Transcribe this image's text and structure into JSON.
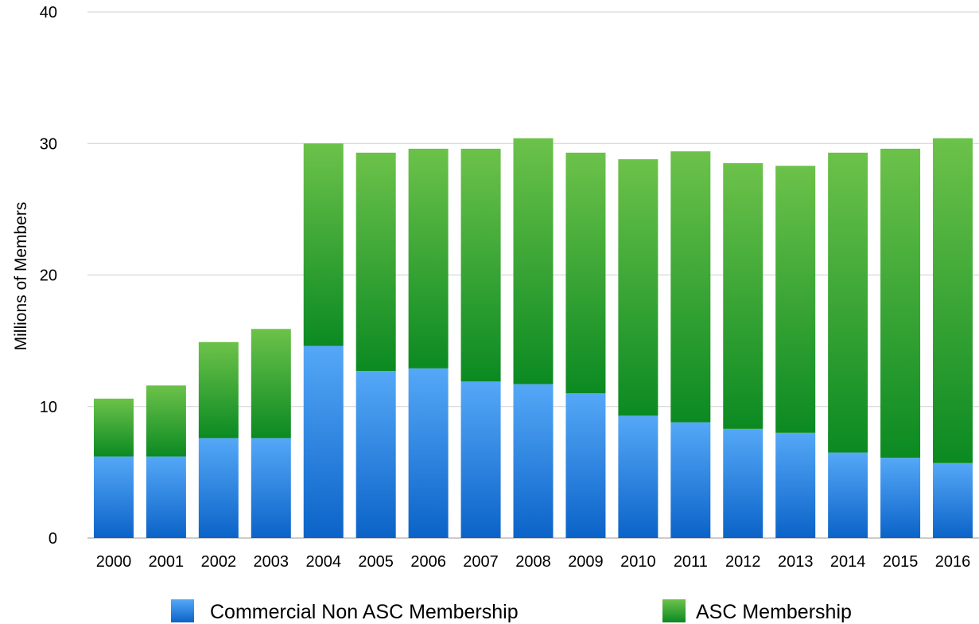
{
  "chart_data": {
    "type": "bar",
    "stacked": true,
    "title": "",
    "xlabel": "",
    "ylabel": "Millions of Members",
    "ylim": [
      0,
      40
    ],
    "yticks": [
      0,
      10,
      20,
      30,
      40
    ],
    "grid": true,
    "legend": "bottom",
    "categories": [
      "2000",
      "2001",
      "2002",
      "2003",
      "2004",
      "2005",
      "2006",
      "2007",
      "2008",
      "2009",
      "2010",
      "2011",
      "2012",
      "2013",
      "2014",
      "2015",
      "2016"
    ],
    "series": [
      {
        "name": "Commercial Non ASC Membership",
        "color": "#2a84e0",
        "values": [
          6.2,
          6.2,
          7.6,
          7.6,
          14.6,
          12.7,
          12.9,
          11.9,
          11.7,
          11.0,
          9.3,
          8.8,
          8.3,
          8.0,
          6.5,
          6.1,
          5.7
        ]
      },
      {
        "name": "ASC Membership",
        "color": "#2e9e36",
        "values": [
          4.4,
          5.4,
          7.3,
          8.3,
          15.4,
          16.6,
          16.7,
          17.7,
          18.7,
          18.3,
          19.5,
          20.6,
          20.2,
          20.3,
          22.8,
          23.5,
          24.7
        ]
      }
    ]
  }
}
